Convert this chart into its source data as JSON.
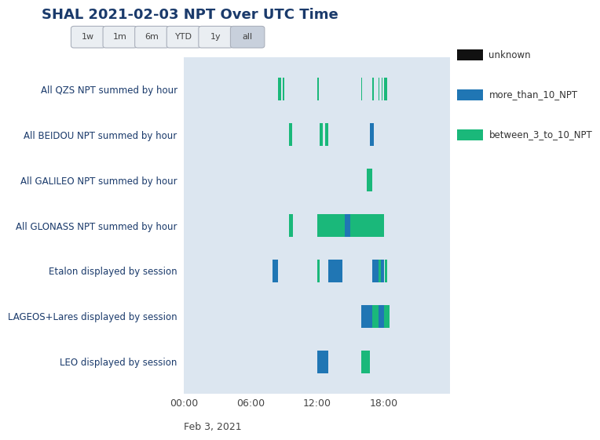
{
  "title": "SHAL 2021-02-03 NPT Over UTC Time",
  "title_color": "#1a3a6b",
  "bg_color": "#dce6f0",
  "fig_bg": "#ffffff",
  "date_label": "Feb 3, 2021",
  "xlim": [
    0,
    86400
  ],
  "xticks": [
    0,
    21600,
    43200,
    64800
  ],
  "xtick_labels": [
    "00:00",
    "06:00",
    "12:00",
    "18:00"
  ],
  "color_unknown": "#111111",
  "color_more_than_10": "#2076b4",
  "color_between_3_10": "#1ab87a",
  "legend_labels": [
    "unknown",
    "more_than_10_NPT",
    "between_3_to_10_NPT"
  ],
  "button_labels": [
    "1w",
    "1m",
    "6m",
    "YTD",
    "1y",
    "all"
  ],
  "button_active": "all",
  "yticklabels": [
    "LEO displayed by session",
    "LAGEOS+Lares displayed by session",
    "Etalon displayed by session",
    "All GLONASS NPT summed by hour",
    "All GALILEO NPT summed by hour",
    "All BEIDOU NPT summed by hour",
    "All QZS NPT summed by hour"
  ],
  "bars": [
    {
      "y": 6,
      "color": "between_3_10",
      "xstart": 30600,
      "xend": 31500
    },
    {
      "y": 6,
      "color": "between_3_10",
      "xstart": 32100,
      "xend": 32700
    },
    {
      "y": 6,
      "color": "between_3_10",
      "xstart": 43200,
      "xend": 43800
    },
    {
      "y": 6,
      "color": "between_3_10",
      "xstart": 57600,
      "xend": 57900
    },
    {
      "y": 6,
      "color": "between_3_10",
      "xstart": 61200,
      "xend": 61500
    },
    {
      "y": 6,
      "color": "between_3_10",
      "xstart": 63000,
      "xend": 63300
    },
    {
      "y": 6,
      "color": "between_3_10",
      "xstart": 64200,
      "xend": 64500
    },
    {
      "y": 6,
      "color": "between_3_10",
      "xstart": 64800,
      "xend": 65100
    },
    {
      "y": 6,
      "color": "between_3_10",
      "xstart": 65100,
      "xend": 65400
    },
    {
      "y": 6,
      "color": "between_3_10",
      "xstart": 65400,
      "xend": 65700
    },
    {
      "y": 6,
      "color": "between_3_10",
      "xstart": 65700,
      "xend": 66000
    },
    {
      "y": 5,
      "color": "between_3_10",
      "xstart": 34200,
      "xend": 35100
    },
    {
      "y": 5,
      "color": "between_3_10",
      "xstart": 44100,
      "xend": 45000
    },
    {
      "y": 5,
      "color": "between_3_10",
      "xstart": 45900,
      "xend": 46800
    },
    {
      "y": 5,
      "color": "more_than_10",
      "xstart": 60300,
      "xend": 61500
    },
    {
      "y": 4,
      "color": "between_3_10",
      "xstart": 59400,
      "xend": 61200
    },
    {
      "y": 3,
      "color": "between_3_10",
      "xstart": 34200,
      "xend": 35400
    },
    {
      "y": 3,
      "color": "between_3_10",
      "xstart": 43200,
      "xend": 52200
    },
    {
      "y": 3,
      "color": "more_than_10",
      "xstart": 52200,
      "xend": 54000
    },
    {
      "y": 3,
      "color": "between_3_10",
      "xstart": 54000,
      "xend": 64800
    },
    {
      "y": 2,
      "color": "more_than_10",
      "xstart": 28800,
      "xend": 30600
    },
    {
      "y": 2,
      "color": "between_3_10",
      "xstart": 43200,
      "xend": 44100
    },
    {
      "y": 2,
      "color": "more_than_10",
      "xstart": 46800,
      "xend": 51300
    },
    {
      "y": 2,
      "color": "more_than_10",
      "xstart": 61200,
      "xend": 63000
    },
    {
      "y": 2,
      "color": "between_3_10",
      "xstart": 63000,
      "xend": 63900
    },
    {
      "y": 2,
      "color": "more_than_10",
      "xstart": 63900,
      "xend": 64800
    },
    {
      "y": 2,
      "color": "between_3_10",
      "xstart": 65100,
      "xend": 66000
    },
    {
      "y": 1,
      "color": "more_than_10",
      "xstart": 57600,
      "xend": 61200
    },
    {
      "y": 1,
      "color": "between_3_10",
      "xstart": 61200,
      "xend": 63000
    },
    {
      "y": 1,
      "color": "more_than_10",
      "xstart": 63000,
      "xend": 64800
    },
    {
      "y": 1,
      "color": "between_3_10",
      "xstart": 64800,
      "xend": 66600
    },
    {
      "y": 0,
      "color": "more_than_10",
      "xstart": 43200,
      "xend": 46800
    },
    {
      "y": 0,
      "color": "between_3_10",
      "xstart": 57600,
      "xend": 60300
    }
  ],
  "bar_height": 0.5
}
